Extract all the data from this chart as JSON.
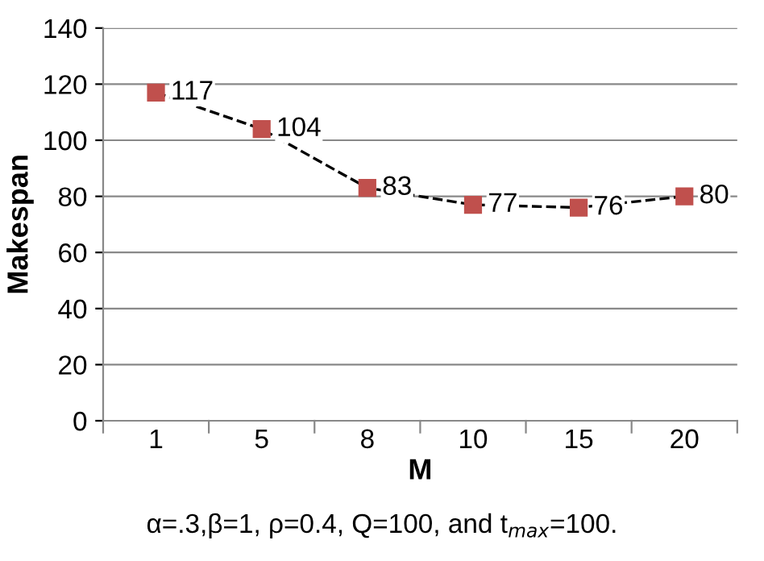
{
  "chart_data": {
    "type": "line",
    "xlabel": "M",
    "ylabel": "Makespan",
    "categories": [
      "1",
      "5",
      "8",
      "10",
      "15",
      "20"
    ],
    "series": [
      {
        "color": "#c0504d",
        "values": [
          117,
          104,
          83,
          77,
          76,
          80
        ]
      }
    ],
    "ylim": [
      0,
      140
    ],
    "yticks": [
      0,
      20,
      40,
      60,
      80,
      100,
      120,
      140
    ],
    "grid": "y",
    "marker": "square",
    "line_style": "dashed",
    "data_labels": true,
    "legend": false,
    "annotations": [
      "α=.3,β=1, ρ=0.4, Q=100, and t$_{max}$=100."
    ]
  }
}
